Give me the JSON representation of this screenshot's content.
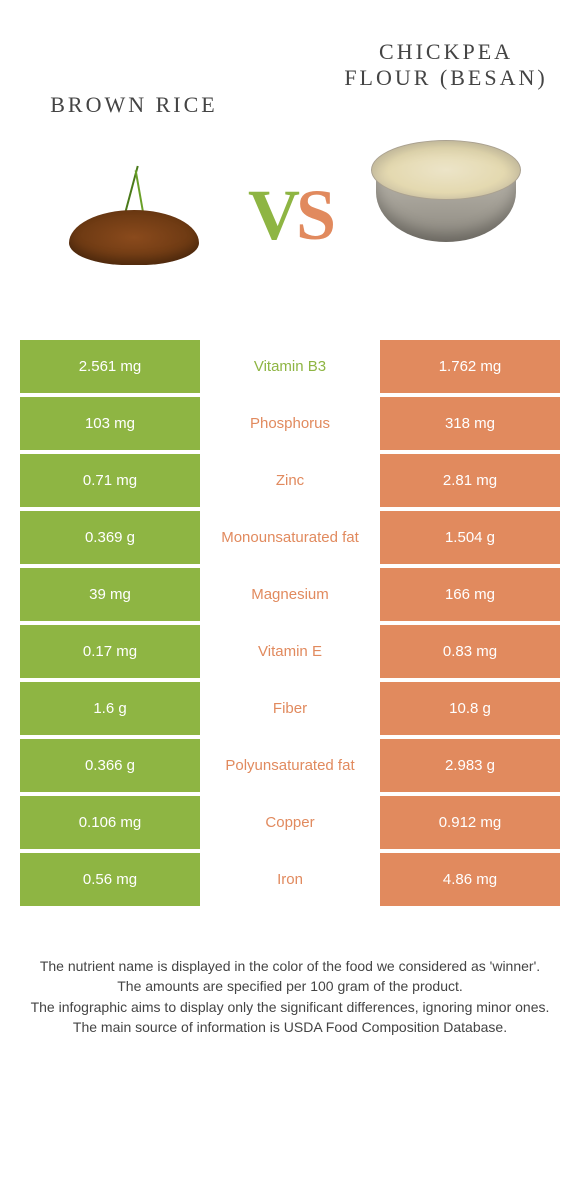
{
  "colors": {
    "green": "#8eb543",
    "orange": "#e18a5e",
    "white": "#ffffff"
  },
  "header": {
    "left_title": "Brown rice",
    "right_title": "Chickpea flour (besan)",
    "vs_v": "V",
    "vs_s": "S"
  },
  "rows": [
    {
      "left": "2.561 mg",
      "mid": "Vitamin B3",
      "right": "1.762 mg",
      "mid_color": "green"
    },
    {
      "left": "103 mg",
      "mid": "Phosphorus",
      "right": "318 mg",
      "mid_color": "orange"
    },
    {
      "left": "0.71 mg",
      "mid": "Zinc",
      "right": "2.81 mg",
      "mid_color": "orange"
    },
    {
      "left": "0.369 g",
      "mid": "Monounsaturated fat",
      "right": "1.504 g",
      "mid_color": "orange"
    },
    {
      "left": "39 mg",
      "mid": "Magnesium",
      "right": "166 mg",
      "mid_color": "orange"
    },
    {
      "left": "0.17 mg",
      "mid": "Vitamin E",
      "right": "0.83 mg",
      "mid_color": "orange"
    },
    {
      "left": "1.6 g",
      "mid": "Fiber",
      "right": "10.8 g",
      "mid_color": "orange"
    },
    {
      "left": "0.366 g",
      "mid": "Polyunsaturated fat",
      "right": "2.983 g",
      "mid_color": "orange"
    },
    {
      "left": "0.106 mg",
      "mid": "Copper",
      "right": "0.912 mg",
      "mid_color": "orange"
    },
    {
      "left": "0.56 mg",
      "mid": "Iron",
      "right": "4.86 mg",
      "mid_color": "orange"
    }
  ],
  "footer": {
    "line1": "The nutrient name is displayed in the color of the food we considered as 'winner'.",
    "line2": "The amounts are specified per 100 gram of the product.",
    "line3": "The infographic aims to display only the significant differences, ignoring minor ones.",
    "line4": "The main source of information is USDA Food Composition Database."
  }
}
